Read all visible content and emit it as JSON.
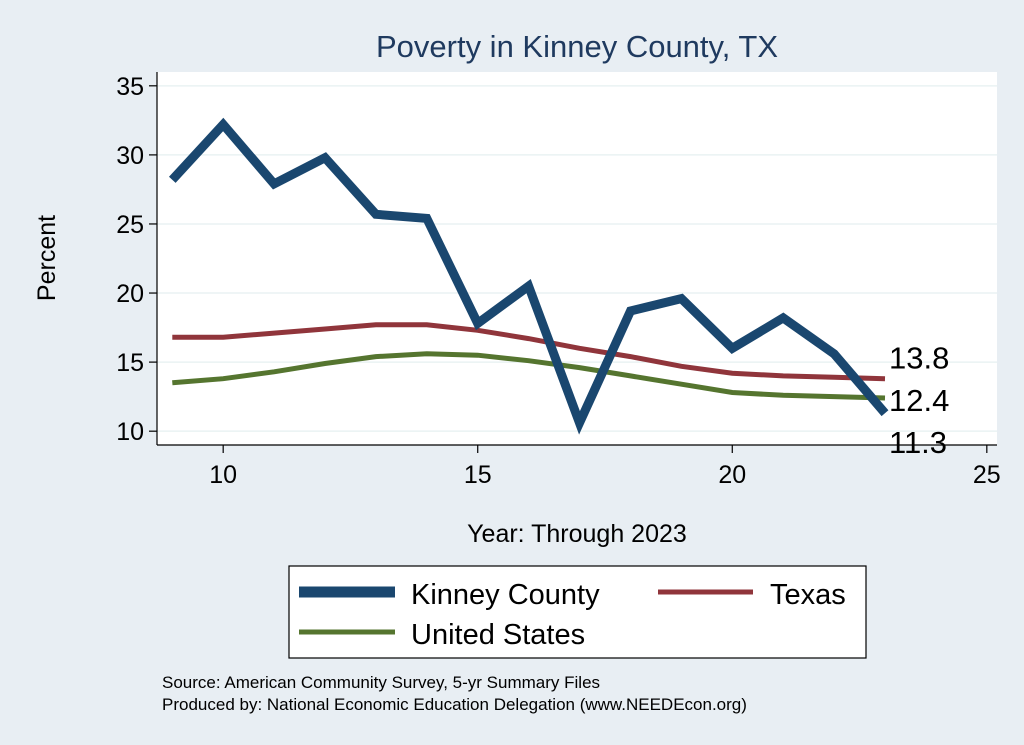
{
  "chart_data": {
    "type": "line",
    "title": "Poverty in Kinney County, TX",
    "xlabel": "Year: Through 2023",
    "ylabel": "Percent",
    "xlim": [
      8.7,
      25.2
    ],
    "ylim": [
      9,
      36
    ],
    "xticks": [
      10,
      15,
      20,
      25
    ],
    "yticks": [
      10,
      15,
      20,
      25,
      30,
      35
    ],
    "grid": true,
    "legend_position": "bottom",
    "x": [
      9,
      10,
      11,
      12,
      13,
      14,
      15,
      16,
      17,
      18,
      19,
      20,
      21,
      22,
      23
    ],
    "series": [
      {
        "name": "Kinney County",
        "color": "#1a476f",
        "values": [
          28.2,
          32.2,
          27.9,
          29.8,
          25.7,
          25.4,
          17.8,
          20.5,
          10.6,
          18.7,
          19.6,
          16.0,
          18.2,
          15.6,
          11.3
        ],
        "end_label": "11.3"
      },
      {
        "name": "Texas",
        "color": "#90353b",
        "values": [
          16.8,
          16.8,
          17.1,
          17.4,
          17.7,
          17.7,
          17.3,
          16.7,
          16.0,
          15.4,
          14.7,
          14.2,
          14.0,
          13.9,
          13.8
        ],
        "end_label": "13.8"
      },
      {
        "name": "United States",
        "color": "#55752f",
        "values": [
          13.5,
          13.8,
          14.3,
          14.9,
          15.4,
          15.6,
          15.5,
          15.1,
          14.6,
          14.0,
          13.4,
          12.8,
          12.6,
          12.5,
          12.4
        ],
        "end_label": "12.4"
      }
    ]
  },
  "footer": {
    "source": "Source: American Community Survey, 5-yr Summary Files",
    "produced_by": "Produced by: National Economic Education Delegation (www.NEEDEcon.org)"
  }
}
